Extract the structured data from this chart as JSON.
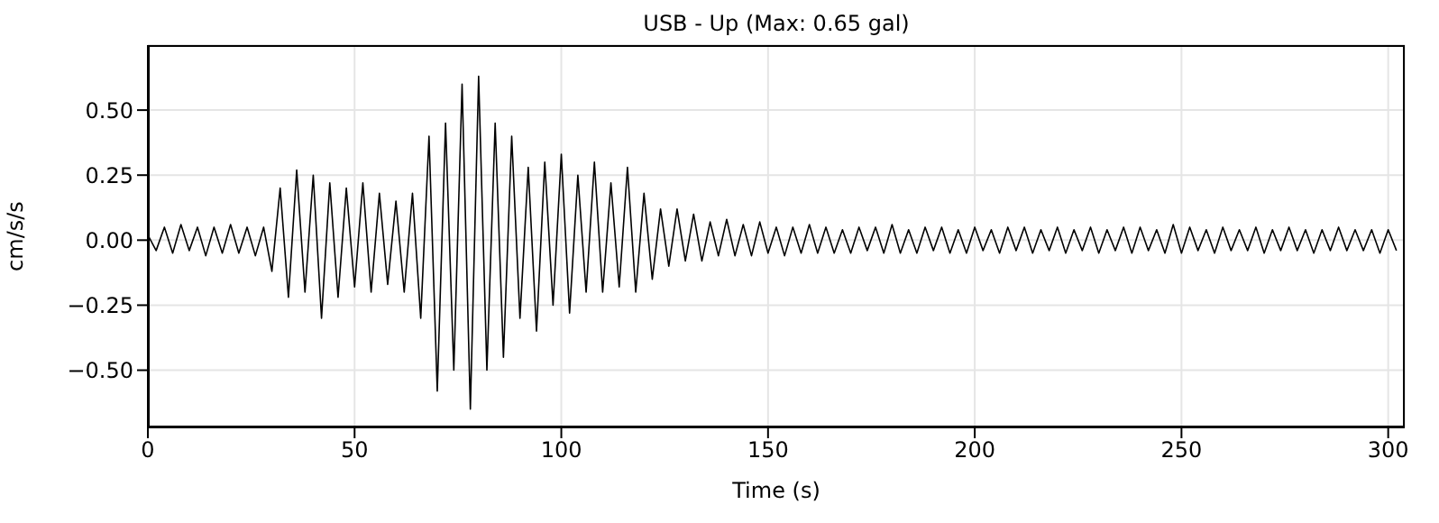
{
  "chart_data": {
    "type": "line",
    "title": "USB - Up (Max: 0.65 gal)",
    "xlabel": "Time (s)",
    "ylabel": "cm/s/s",
    "xlim": [
      0,
      304
    ],
    "xticks": [
      0,
      50,
      100,
      150,
      200,
      250,
      300
    ],
    "ylim": [
      -0.72,
      0.75
    ],
    "yticks": [
      {
        "value": -0.5,
        "label": "−0.50"
      },
      {
        "value": -0.25,
        "label": "−0.25"
      },
      {
        "value": 0,
        "label": "0.00"
      },
      {
        "value": 0.25,
        "label": "0.25"
      },
      {
        "value": 0.5,
        "label": "0.50"
      }
    ],
    "grid": true,
    "legend": false,
    "marker": "none",
    "line_style": "solid",
    "x": [
      0,
      2,
      4,
      6,
      8,
      10,
      12,
      14,
      16,
      18,
      20,
      22,
      24,
      26,
      28,
      30,
      32,
      34,
      36,
      38,
      40,
      42,
      44,
      46,
      48,
      50,
      52,
      54,
      56,
      58,
      60,
      62,
      64,
      66,
      68,
      70,
      72,
      74,
      76,
      78,
      80,
      82,
      84,
      86,
      88,
      90,
      92,
      94,
      96,
      98,
      100,
      102,
      104,
      106,
      108,
      110,
      112,
      114,
      116,
      118,
      120,
      122,
      124,
      126,
      128,
      130,
      132,
      134,
      136,
      138,
      140,
      142,
      144,
      146,
      148,
      150,
      152,
      154,
      156,
      158,
      160,
      162,
      164,
      166,
      168,
      170,
      172,
      174,
      176,
      178,
      180,
      182,
      184,
      186,
      188,
      190,
      192,
      194,
      196,
      198,
      200,
      202,
      204,
      206,
      208,
      210,
      212,
      214,
      216,
      218,
      220,
      222,
      224,
      226,
      228,
      230,
      232,
      234,
      236,
      238,
      240,
      242,
      244,
      246,
      248,
      250,
      252,
      254,
      256,
      258,
      260,
      262,
      264,
      266,
      268,
      270,
      272,
      274,
      276,
      278,
      280,
      282,
      284,
      286,
      288,
      290,
      292,
      294,
      296,
      298,
      300,
      302
    ],
    "series": [
      {
        "color": "#000000",
        "values": [
          0.02,
          -0.04,
          0.05,
          -0.05,
          0.06,
          -0.04,
          0.05,
          -0.06,
          0.05,
          -0.05,
          0.06,
          -0.05,
          0.05,
          -0.06,
          0.05,
          -0.12,
          0.2,
          -0.22,
          0.27,
          -0.2,
          0.25,
          -0.3,
          0.22,
          -0.22,
          0.2,
          -0.18,
          0.22,
          -0.2,
          0.18,
          -0.17,
          0.15,
          -0.2,
          0.18,
          -0.3,
          0.4,
          -0.58,
          0.45,
          -0.5,
          0.6,
          -0.65,
          0.63,
          -0.5,
          0.45,
          -0.45,
          0.4,
          -0.3,
          0.28,
          -0.35,
          0.3,
          -0.25,
          0.33,
          -0.28,
          0.25,
          -0.2,
          0.3,
          -0.2,
          0.22,
          -0.18,
          0.28,
          -0.2,
          0.18,
          -0.15,
          0.12,
          -0.1,
          0.12,
          -0.08,
          0.1,
          -0.08,
          0.07,
          -0.06,
          0.08,
          -0.06,
          0.06,
          -0.06,
          0.07,
          -0.05,
          0.05,
          -0.06,
          0.05,
          -0.05,
          0.06,
          -0.05,
          0.05,
          -0.05,
          0.04,
          -0.05,
          0.05,
          -0.04,
          0.05,
          -0.05,
          0.06,
          -0.05,
          0.04,
          -0.05,
          0.05,
          -0.04,
          0.05,
          -0.05,
          0.04,
          -0.05,
          0.05,
          -0.04,
          0.04,
          -0.05,
          0.05,
          -0.04,
          0.05,
          -0.05,
          0.04,
          -0.04,
          0.05,
          -0.05,
          0.04,
          -0.04,
          0.05,
          -0.05,
          0.04,
          -0.04,
          0.05,
          -0.05,
          0.05,
          -0.04,
          0.04,
          -0.05,
          0.06,
          -0.05,
          0.05,
          -0.04,
          0.04,
          -0.05,
          0.05,
          -0.04,
          0.04,
          -0.04,
          0.05,
          -0.05,
          0.04,
          -0.04,
          0.05,
          -0.04,
          0.04,
          -0.05,
          0.04,
          -0.04,
          0.05,
          -0.04,
          0.04,
          -0.04,
          0.04,
          -0.05,
          0.04,
          -0.04
        ]
      }
    ]
  }
}
